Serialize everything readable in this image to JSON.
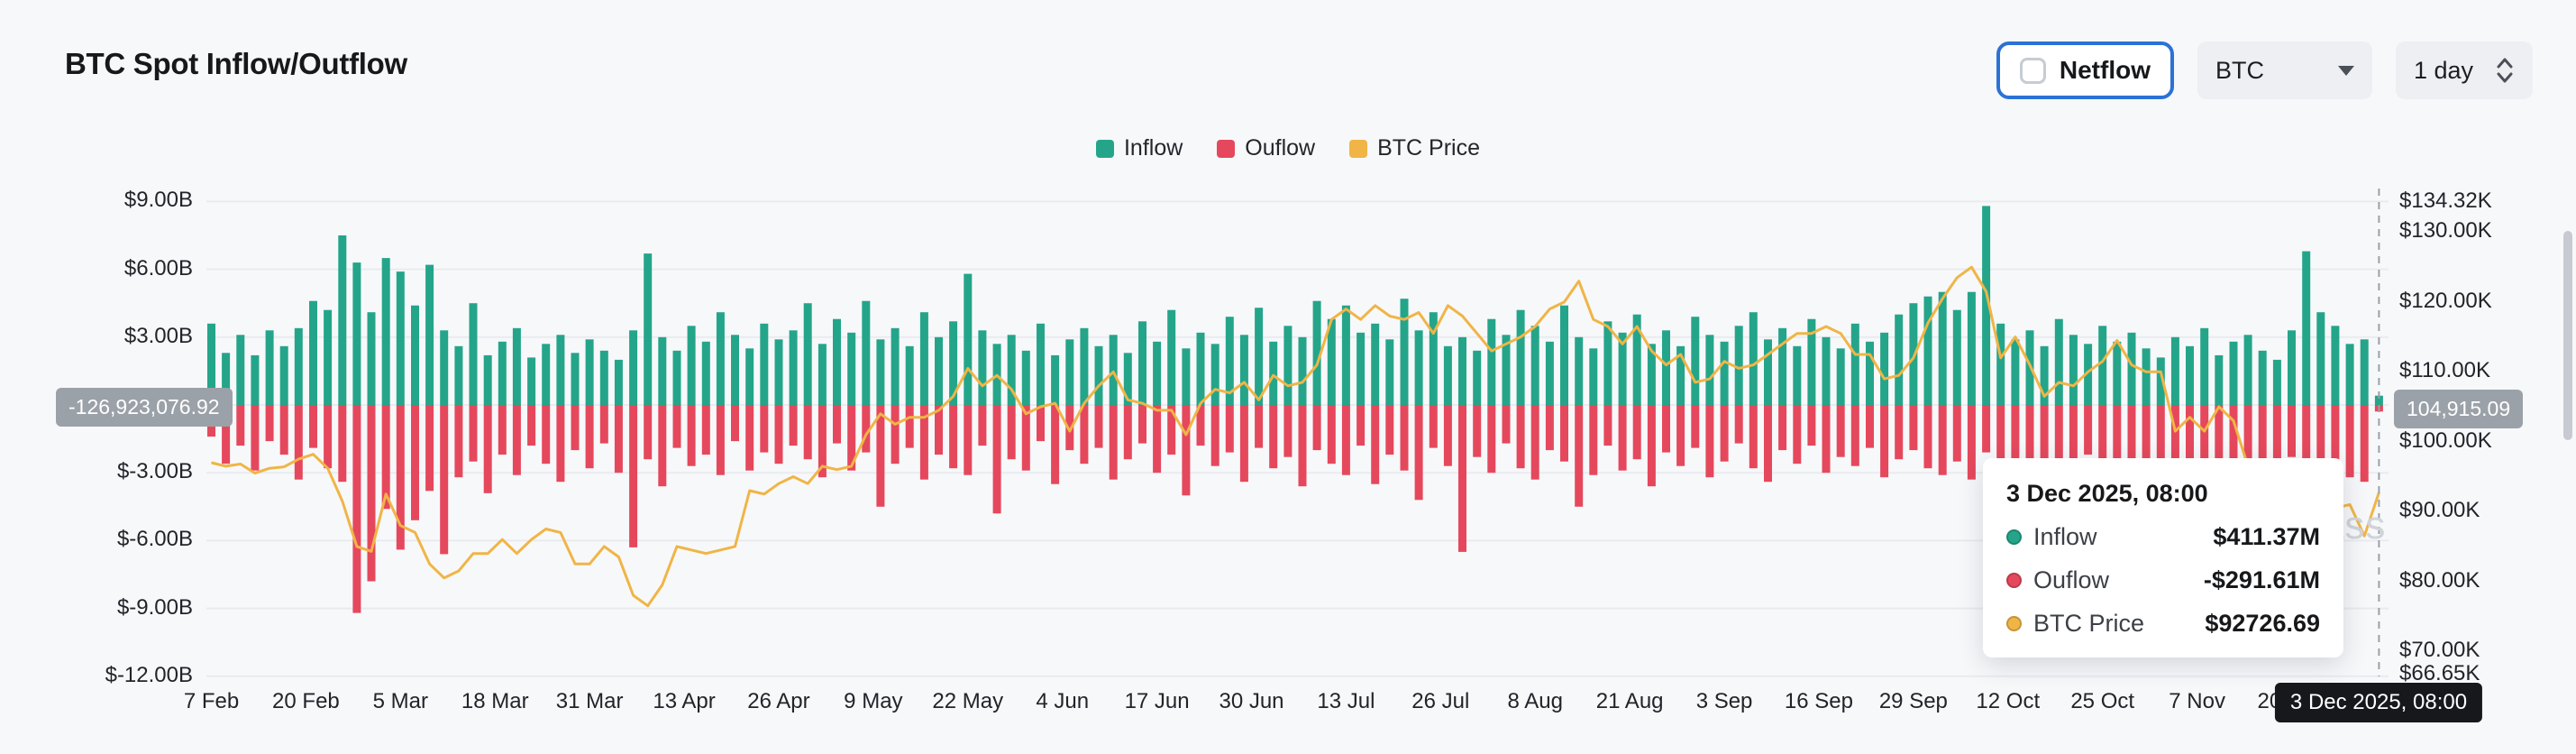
{
  "header": {
    "title": "BTC Spot Inflow/Outflow",
    "netflow_label": "Netflow",
    "symbol_select": "BTC",
    "interval_select": "1 day"
  },
  "legend": [
    {
      "label": "Inflow",
      "color": "#24a58a"
    },
    {
      "label": "Ouflow",
      "color": "#e5485c"
    },
    {
      "label": "BTC Price",
      "color": "#f0b546"
    }
  ],
  "badges": {
    "left_value": "-126,923,076.92",
    "right_value": "104,915.09"
  },
  "tooltip": {
    "title": "3 Dec 2025, 08:00",
    "rows": [
      {
        "label": "Inflow",
        "value": "$411.37M",
        "color": "#24a58a"
      },
      {
        "label": "Ouflow",
        "value": "-$291.61M",
        "color": "#e5485c"
      },
      {
        "label": "BTC Price",
        "value": "$92726.69",
        "color": "#f0b546"
      }
    ]
  },
  "x_tooltip": "3 Dec 2025, 08:00",
  "watermark": "coinglass",
  "chart_data": {
    "type": "bar",
    "title": "BTC Spot Inflow/Outflow",
    "units": {
      "bars": "USD billions",
      "price": "USD thousands"
    },
    "sample_interval_days": 2,
    "start_date": "7 Feb",
    "y_axis_left": [
      {
        "value": 9,
        "label": "$9.00B"
      },
      {
        "value": 6,
        "label": "$6.00B"
      },
      {
        "value": 3,
        "label": "$3.00B"
      },
      {
        "value": 0,
        "label": ""
      },
      {
        "value": -3,
        "label": "$-3.00B"
      },
      {
        "value": -6,
        "label": "$-6.00B"
      },
      {
        "value": -9,
        "label": "$-9.00B"
      },
      {
        "value": -12,
        "label": "$-12.00B"
      }
    ],
    "y_axis_right": [
      {
        "value": 134.32,
        "label": "$134.32K"
      },
      {
        "value": 130,
        "label": "$130.00K"
      },
      {
        "value": 120,
        "label": "$120.00K"
      },
      {
        "value": 110,
        "label": "$110.00K"
      },
      {
        "value": 100,
        "label": "$100.00K"
      },
      {
        "value": 90,
        "label": "$90.00K"
      },
      {
        "value": 80,
        "label": "$80.00K"
      },
      {
        "value": 70,
        "label": "$70.00K"
      },
      {
        "value": 66.65,
        "label": "$66.65K"
      }
    ],
    "x_axis": [
      {
        "day": 0,
        "label": "7 Feb"
      },
      {
        "day": 13,
        "label": "20 Feb"
      },
      {
        "day": 26,
        "label": "5 Mar"
      },
      {
        "day": 39,
        "label": "18 Mar"
      },
      {
        "day": 52,
        "label": "31 Mar"
      },
      {
        "day": 65,
        "label": "13 Apr"
      },
      {
        "day": 78,
        "label": "26 Apr"
      },
      {
        "day": 91,
        "label": "9 May"
      },
      {
        "day": 104,
        "label": "22 May"
      },
      {
        "day": 117,
        "label": "4 Jun"
      },
      {
        "day": 130,
        "label": "17 Jun"
      },
      {
        "day": 143,
        "label": "30 Jun"
      },
      {
        "day": 156,
        "label": "13 Jul"
      },
      {
        "day": 169,
        "label": "26 Jul"
      },
      {
        "day": 182,
        "label": "8 Aug"
      },
      {
        "day": 195,
        "label": "21 Aug"
      },
      {
        "day": 208,
        "label": "3 Sep"
      },
      {
        "day": 221,
        "label": "16 Sep"
      },
      {
        "day": 234,
        "label": "29 Sep"
      },
      {
        "day": 247,
        "label": "12 Oct"
      },
      {
        "day": 260,
        "label": "25 Oct"
      },
      {
        "day": 273,
        "label": "7 Nov"
      },
      {
        "day": 286,
        "label": "20 Nov"
      }
    ],
    "series": {
      "inflow": {
        "name": "Inflow",
        "color": "#24a58a",
        "values": [
          3.6,
          2.3,
          3.1,
          2.2,
          3.3,
          2.6,
          3.4,
          4.6,
          4.2,
          7.5,
          6.3,
          4.1,
          6.5,
          5.9,
          4.4,
          6.2,
          3.3,
          2.6,
          4.5,
          2.2,
          2.8,
          3.4,
          2.1,
          2.7,
          3.1,
          2.3,
          2.9,
          2.4,
          2.0,
          3.3,
          6.7,
          3.0,
          2.4,
          3.5,
          2.8,
          4.1,
          3.1,
          2.5,
          3.6,
          2.9,
          3.3,
          4.5,
          2.7,
          3.8,
          3.2,
          4.6,
          2.9,
          3.4,
          2.6,
          4.1,
          3.0,
          3.7,
          5.8,
          3.3,
          2.7,
          3.1,
          2.4,
          3.6,
          2.2,
          2.9,
          3.4,
          2.6,
          3.1,
          2.3,
          3.7,
          2.8,
          4.2,
          2.5,
          3.2,
          2.7,
          3.9,
          3.1,
          4.3,
          2.8,
          3.5,
          3.0,
          4.6,
          3.8,
          4.4,
          3.2,
          3.6,
          2.9,
          4.7,
          3.3,
          4.1,
          2.6,
          3.0,
          2.4,
          3.8,
          3.1,
          4.2,
          3.5,
          2.8,
          4.4,
          3.0,
          2.5,
          3.7,
          3.2,
          4.0,
          2.7,
          3.3,
          2.6,
          3.9,
          3.1,
          2.8,
          3.5,
          4.1,
          2.9,
          3.4,
          2.6,
          3.8,
          3.0,
          2.5,
          3.6,
          2.8,
          3.2,
          4.0,
          4.5,
          4.8,
          5.0,
          4.2,
          5.0,
          8.8,
          3.6,
          2.9,
          3.3,
          2.6,
          3.8,
          3.1,
          2.7,
          3.5,
          2.8,
          3.2,
          2.5,
          2.1,
          3.0,
          2.6,
          3.4,
          2.2,
          2.8,
          3.1,
          2.4,
          2.0,
          3.3,
          6.8,
          4.1,
          3.5,
          2.7,
          2.9,
          0.41
        ]
      },
      "outflow": {
        "name": "Ouflow",
        "color": "#e5485c",
        "values": [
          -1.4,
          -2.6,
          -1.8,
          -2.9,
          -1.6,
          -2.2,
          -3.3,
          -1.9,
          -2.8,
          -3.4,
          -9.2,
          -7.8,
          -4.6,
          -6.4,
          -5.1,
          -3.8,
          -6.6,
          -3.2,
          -2.5,
          -3.9,
          -2.2,
          -3.1,
          -1.8,
          -2.6,
          -3.4,
          -2.0,
          -2.8,
          -1.7,
          -3.0,
          -6.3,
          -2.4,
          -3.6,
          -1.9,
          -2.7,
          -2.2,
          -3.1,
          -1.6,
          -2.9,
          -2.1,
          -2.6,
          -1.8,
          -2.4,
          -3.2,
          -1.7,
          -2.9,
          -2.1,
          -4.5,
          -2.6,
          -1.9,
          -3.3,
          -2.2,
          -2.8,
          -3.1,
          -1.8,
          -4.8,
          -2.4,
          -2.9,
          -1.6,
          -3.5,
          -2.0,
          -2.6,
          -1.9,
          -3.3,
          -2.4,
          -1.7,
          -3.0,
          -2.2,
          -4.0,
          -1.8,
          -2.7,
          -2.1,
          -3.4,
          -1.9,
          -2.8,
          -2.3,
          -3.6,
          -2.0,
          -2.6,
          -3.1,
          -1.8,
          -3.5,
          -2.2,
          -2.9,
          -4.2,
          -1.9,
          -2.7,
          -6.5,
          -2.3,
          -3.0,
          -1.7,
          -2.8,
          -3.3,
          -2.0,
          -2.5,
          -4.5,
          -3.1,
          -1.8,
          -2.9,
          -2.4,
          -3.6,
          -2.1,
          -2.7,
          -1.9,
          -3.2,
          -2.5,
          -1.7,
          -2.8,
          -3.4,
          -2.0,
          -2.6,
          -1.8,
          -3.0,
          -2.3,
          -2.7,
          -1.9,
          -3.2,
          -2.4,
          -2.0,
          -2.8,
          -3.1,
          -2.5,
          -3.3,
          -2.1,
          -4.0,
          -3.4,
          -2.6,
          -4.8,
          -2.9,
          -3.6,
          -2.2,
          -4.2,
          -3.0,
          -4.6,
          -2.8,
          -5.2,
          -3.5,
          -2.7,
          -4.4,
          -3.1,
          -2.5,
          -3.8,
          -2.9,
          -4.1,
          -2.3,
          -3.0,
          -2.6,
          -4.5,
          -3.2,
          -3.4,
          -0.29
        ]
      },
      "price": {
        "name": "BTC Price",
        "color": "#f0b546",
        "values": [
          97,
          96.5,
          96.8,
          95.5,
          96.2,
          96.4,
          97.5,
          98.2,
          96.2,
          91.5,
          85,
          84.3,
          92.5,
          88,
          87,
          82.5,
          80.5,
          81.5,
          84,
          84,
          86,
          84,
          86,
          87.5,
          87,
          82.5,
          82.5,
          85,
          83.5,
          78,
          76.5,
          79.5,
          85,
          84.5,
          84,
          84.5,
          85,
          93,
          92.5,
          94,
          95,
          94,
          96.5,
          96,
          96.5,
          101,
          104,
          102.5,
          103.5,
          103.5,
          104.5,
          106.5,
          110.5,
          108,
          109.5,
          107.5,
          104,
          105,
          105.5,
          101.5,
          105.5,
          108,
          110,
          106,
          105.5,
          104.5,
          104.5,
          101,
          105.5,
          107.5,
          107,
          108.5,
          106,
          109.5,
          108,
          108.5,
          111,
          117.5,
          119,
          117.5,
          119.5,
          118,
          117.5,
          118.5,
          115.5,
          119.5,
          118,
          115.5,
          113,
          114,
          115,
          116.5,
          119,
          120,
          123,
          117.5,
          116.5,
          114,
          116.5,
          113,
          111,
          112.5,
          108.5,
          109,
          111.5,
          110.5,
          111,
          112.5,
          114,
          115.5,
          115.5,
          116.5,
          115.5,
          112.5,
          112.5,
          109,
          109.5,
          112,
          117,
          120.5,
          123.5,
          125,
          121.5,
          112,
          115,
          111,
          106.5,
          108.5,
          108,
          110,
          111.5,
          114.5,
          111,
          110,
          110,
          101.5,
          103.5,
          101.5,
          105,
          103,
          96.5,
          95.5,
          91.5,
          87,
          84,
          88,
          90.5,
          91,
          86.5,
          92.73
        ]
      }
    }
  }
}
